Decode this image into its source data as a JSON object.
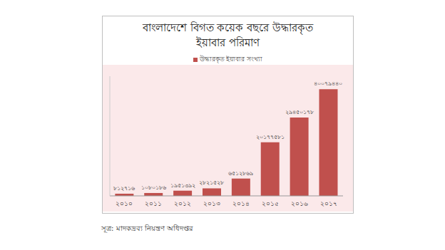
{
  "chart_data": {
    "type": "bar",
    "title": "বাংলাদেশে বিগত কয়েক বছরে উদ্ধারকৃত ইয়াবার পরিমাণ",
    "legend_label": "উদ্ধারকৃত ইয়াবার সংখ্যা",
    "source": "সূত্র: মাদকদ্রব্য নিয়ন্ত্রণ অধিদপ্তর",
    "categories": [
      "২০১০",
      "২০১১",
      "২০১২",
      "২০১৩",
      "২০১৪",
      "২০১৫",
      "২০১৬",
      "২০১৭"
    ],
    "values": [
      812716,
      1080186,
      1951392,
      2821528,
      6512869,
      20177581,
      29450178,
      40079440
    ],
    "value_labels": [
      "৮১২৭১৬",
      "১০৮০১৮৬",
      "১৯৫১৩৯২",
      "২৮২১৫২৮",
      "৬৫১২৮৬৯",
      "২০১৭৭৫৮১",
      "২৯৪৫০১৭৮",
      "৪০০৭৯৪৪০"
    ],
    "color": "#c0504d",
    "ylim": [
      0,
      45000000
    ],
    "grid": false,
    "legend": "top",
    "data_labels": true,
    "tick_labels": "x"
  }
}
